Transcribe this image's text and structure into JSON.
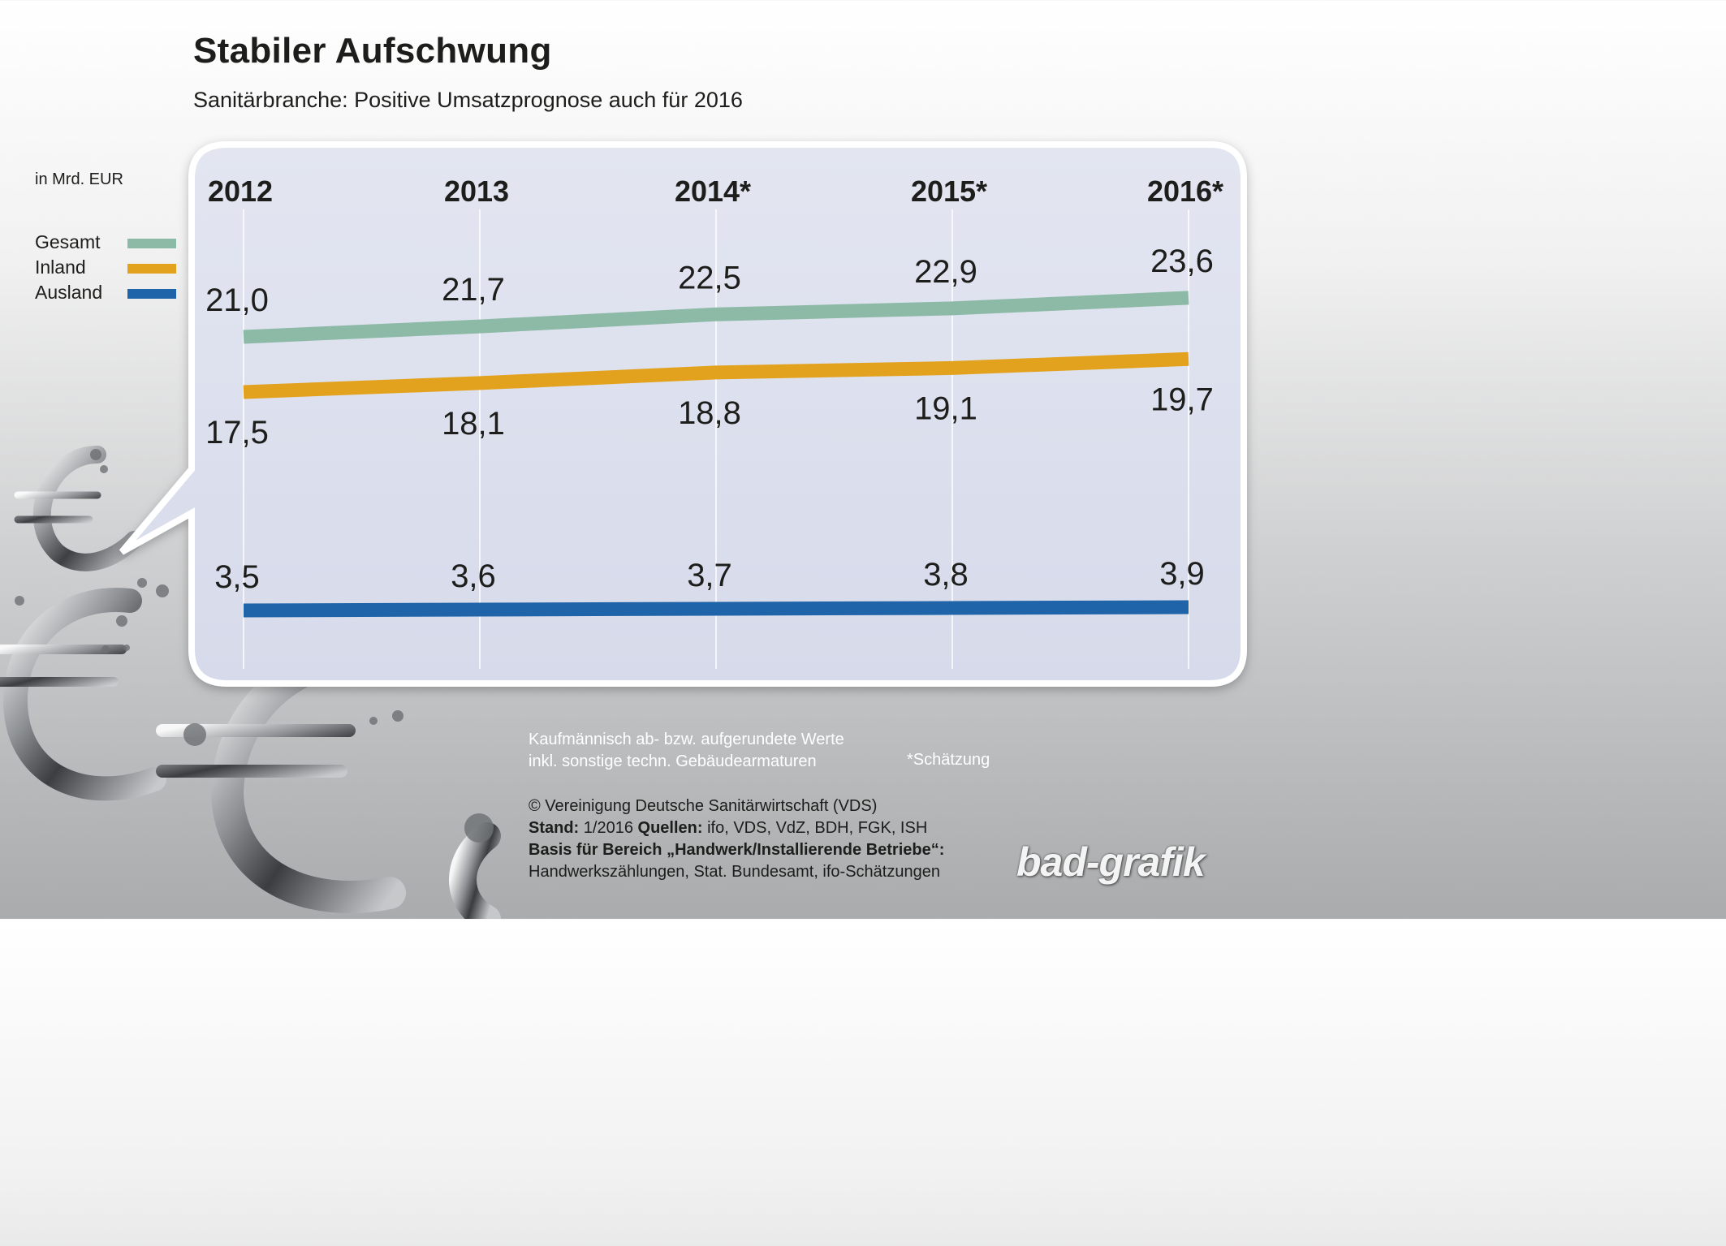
{
  "header": {
    "title": "Stabiler Aufschwung",
    "subtitle": "Sanitärbranche: Positive Umsatzprognose auch für 2016"
  },
  "unit_label": "in Mrd. EUR",
  "colors": {
    "gesamt": "#8cbaa6",
    "inland": "#e2a21e",
    "ausland": "#1f63a8"
  },
  "notes": {
    "line1": "Kaufmännisch ab- bzw. aufgerundete Werte",
    "line2": "inkl. sonstige techn. Gebäudearmaturen",
    "estimate": "*Schätzung"
  },
  "credits": {
    "copyright": "© Vereinigung Deutsche Sanitärwirtschaft (VDS)",
    "stand_label": "Stand:",
    "stand_value": "1/2016",
    "sources_label": "Quellen:",
    "sources_value": "ifo, VDS, VdZ, BDH, FGK, ISH",
    "basis_label": "Basis für Bereich „Handwerk/Installierende Betriebe“:",
    "basis_value": "Handwerkszählungen, Stat. Bundesamt, ifo-Schätzungen"
  },
  "logo": {
    "part1": "bad",
    "part2": "-grafik"
  },
  "chart_data": {
    "type": "line",
    "title": "Stabiler Aufschwung",
    "subtitle": "Sanitärbranche: Positive Umsatzprognose auch für 2016",
    "ylabel": "in Mrd. EUR",
    "categories": [
      "2012",
      "2013",
      "2014*",
      "2015*",
      "2016*"
    ],
    "series": [
      {
        "key": "gesamt",
        "name": "Gesamt",
        "values": [
          21.0,
          21.7,
          22.5,
          22.9,
          23.6
        ],
        "labels": [
          "21,0",
          "21,7",
          "22,5",
          "22,9",
          "23,6"
        ]
      },
      {
        "key": "inland",
        "name": "Inland",
        "values": [
          17.5,
          18.1,
          18.8,
          19.1,
          19.7
        ],
        "labels": [
          "17,5",
          "18,1",
          "18,8",
          "19,1",
          "19,7"
        ]
      },
      {
        "key": "ausland",
        "name": "Ausland",
        "values": [
          3.5,
          3.6,
          3.7,
          3.8,
          3.9
        ],
        "labels": [
          "3,5",
          "3,6",
          "3,7",
          "3,8",
          "3,9"
        ]
      }
    ],
    "legend": "left",
    "grid": true
  }
}
